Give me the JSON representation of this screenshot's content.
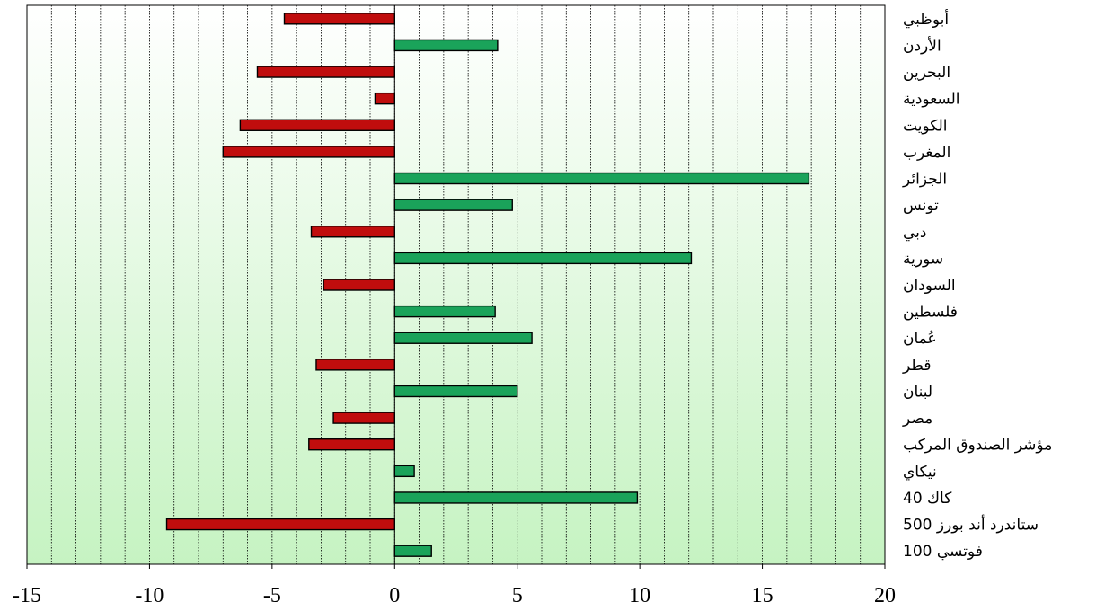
{
  "chart_data": {
    "type": "bar",
    "orientation": "horizontal",
    "categories": [
      "أبوظبي",
      "الأردن",
      "البحرين",
      "السعودية",
      "الكويت",
      "المغرب",
      "الجزائر",
      "تونس",
      "دبي",
      "سورية",
      "السودان",
      "فلسطين",
      "عُمان",
      "قطر",
      "لبنان",
      "مصر",
      "مؤشر الصندوق المركب",
      "نيكاي",
      "كاك 40",
      "ستاندرد أند بورز 500",
      "فوتسي 100"
    ],
    "values": [
      -4.5,
      4.2,
      -5.6,
      -0.8,
      -6.3,
      -7.0,
      16.9,
      4.8,
      -3.4,
      12.1,
      -2.9,
      4.1,
      5.6,
      -3.2,
      5.0,
      -2.5,
      -3.5,
      0.8,
      9.9,
      -9.3,
      1.5
    ],
    "xlim": [
      -15,
      20
    ],
    "xticks": [
      "-15",
      "-10",
      "-5",
      "0",
      "5",
      "10",
      "15",
      "20"
    ],
    "grid": true,
    "colors": {
      "positive": "#1aa35a",
      "negative": "#c00d0d",
      "bar_outline": "#000000",
      "grid": "#000000",
      "bg_top": "#ffffff",
      "bg_bottom": "#c6f3c2"
    }
  }
}
